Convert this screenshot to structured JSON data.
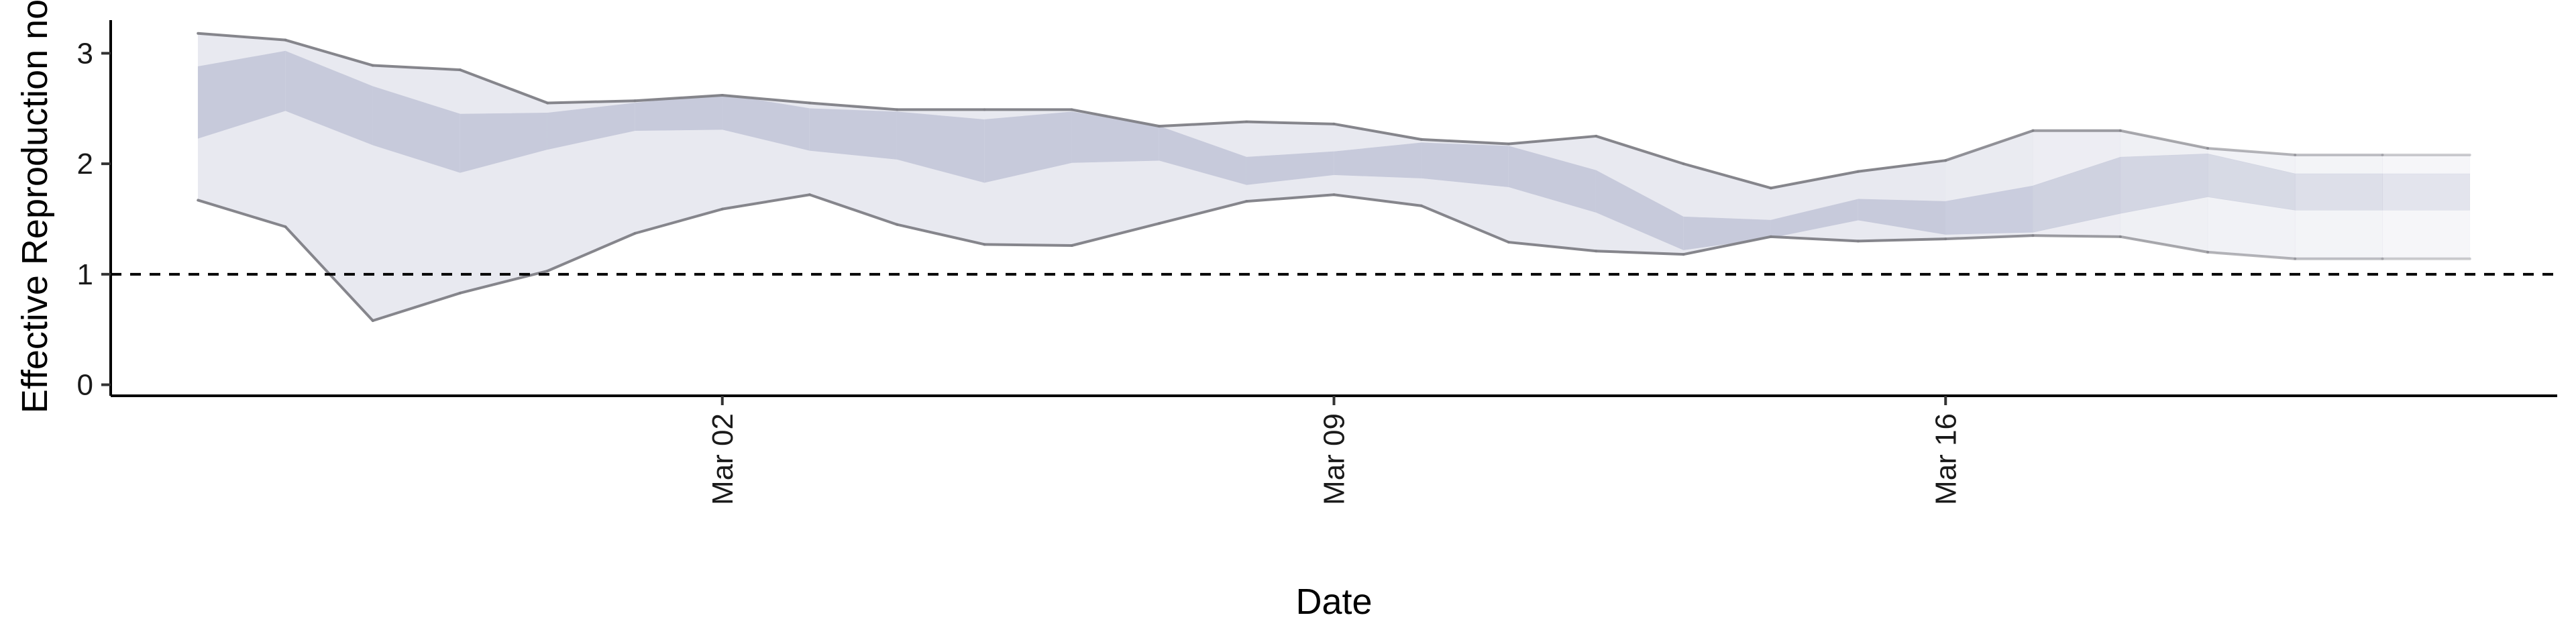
{
  "chart_data": {
    "type": "area",
    "title": "",
    "xlabel": "Date",
    "ylabel": "Effective Reproduction no.",
    "ylim": [
      -0.1,
      3.3
    ],
    "xlim": [
      "2020-02-24",
      "2020-03-23"
    ],
    "yticks": [
      0,
      1,
      2,
      3
    ],
    "xticks": [
      "Mar 02",
      "Mar 09",
      "Mar 16"
    ],
    "xtick_dates": [
      "2020-03-02",
      "2020-03-09",
      "2020-03-16"
    ],
    "reference_line": {
      "y": 1,
      "style": "dashed"
    },
    "grid": false,
    "legend": "none",
    "colors": {
      "band_outer": "#e8e9f0",
      "band_inner": "#c7cadb",
      "bound_line": "#7f7f86",
      "reference": "#000000"
    },
    "dates": [
      "2020-02-25",
      "2020-02-26",
      "2020-02-27",
      "2020-02-28",
      "2020-02-29",
      "2020-03-01",
      "2020-03-02",
      "2020-03-03",
      "2020-03-04",
      "2020-03-05",
      "2020-03-06",
      "2020-03-07",
      "2020-03-08",
      "2020-03-09",
      "2020-03-10",
      "2020-03-11",
      "2020-03-12",
      "2020-03-13",
      "2020-03-14",
      "2020-03-15",
      "2020-03-16",
      "2020-03-17",
      "2020-03-18",
      "2020-03-19",
      "2020-03-20",
      "2020-03-21",
      "2020-03-22"
    ],
    "series": [
      {
        "name": "",
        "values": [
          1.67,
          1.43,
          0.58,
          0.83,
          1.03,
          1.37,
          1.59,
          1.72,
          1.45,
          1.27,
          1.26,
          1.46,
          1.66,
          1.72,
          1.62,
          1.29,
          1.21,
          1.18,
          1.34,
          1.3,
          1.32,
          1.35,
          1.34,
          1.2,
          1.14,
          1.14,
          1.14
        ]
      },
      {
        "name": "",
        "values": [
          2.23,
          2.48,
          2.17,
          1.92,
          2.13,
          2.3,
          2.31,
          2.12,
          2.04,
          1.83,
          2.01,
          2.03,
          1.81,
          1.9,
          1.87,
          1.79,
          1.56,
          1.22,
          1.33,
          1.49,
          1.36,
          1.38,
          1.55,
          1.7,
          1.58,
          1.58,
          1.58
        ]
      },
      {
        "name": "",
        "values": [
          2.88,
          3.02,
          2.7,
          2.45,
          2.46,
          2.55,
          2.63,
          2.5,
          2.47,
          2.4,
          2.47,
          2.34,
          2.06,
          2.11,
          2.19,
          2.16,
          1.94,
          1.52,
          1.49,
          1.68,
          1.66,
          1.8,
          2.06,
          2.09,
          1.91,
          1.91,
          1.91
        ]
      },
      {
        "name": "",
        "values": [
          3.18,
          3.12,
          2.89,
          2.85,
          2.55,
          2.57,
          2.62,
          2.55,
          2.49,
          2.49,
          2.49,
          2.34,
          2.38,
          2.36,
          2.22,
          2.18,
          2.25,
          2.0,
          1.78,
          1.93,
          2.03,
          2.3,
          2.3,
          2.14,
          2.08,
          2.08,
          2.08
        ]
      }
    ]
  }
}
